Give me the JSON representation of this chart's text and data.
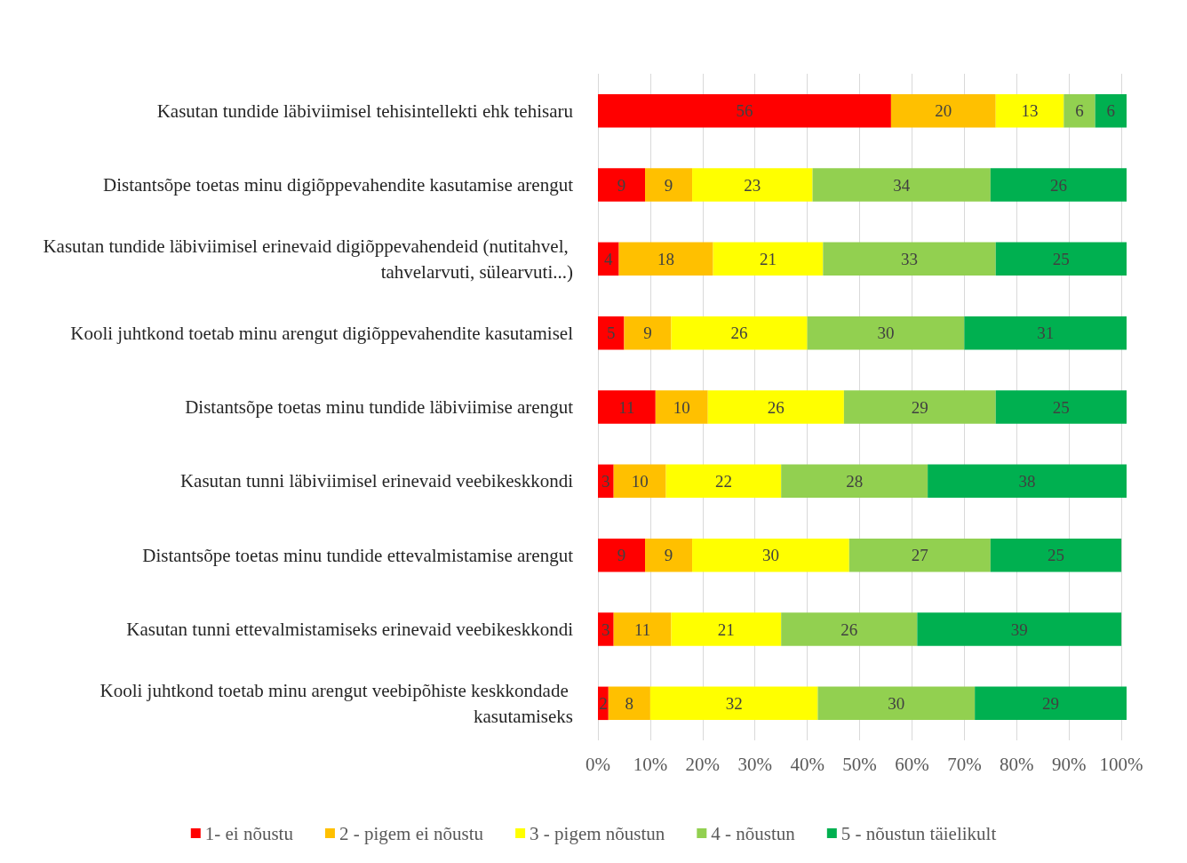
{
  "chart_data": {
    "type": "bar",
    "orientation": "horizontal",
    "stacked": true,
    "data_labels": true,
    "grid": "x",
    "legend": "bottom",
    "categories": [
      "Kasutan tundide läbiviimisel tehisintellekti ehk tehisaru",
      "Distantsõpe toetas minu digiõppevahendite kasutamise arengut",
      "Kasutan tundide läbiviimisel erinevaid digiõppevahendeid (nutitahvel, tahvelarvuti, sülearvuti...)",
      "Kooli juhtkond toetab minu arengut digiõppevahendite kasutamisel",
      "Distantsõpe toetas minu tundide läbiviimise arengut",
      "Kasutan tunni läbiviimisel erinevaid veebikeskkondi",
      "Distantsõpe toetas minu tundide ettevalmistamise arengut",
      "Kasutan tunni ettevalmistamiseks erinevaid veebikeskkondi",
      "Kooli juhtkond toetab minu arengut veebipõhiste keskkondade kasutamiseks"
    ],
    "xlim": [
      0,
      101
    ],
    "xticks": [
      {
        "value": 0,
        "label": "0%"
      },
      {
        "value": 10,
        "label": "10%"
      },
      {
        "value": 20,
        "label": "20%"
      },
      {
        "value": 30,
        "label": "30%"
      },
      {
        "value": 40,
        "label": "40%"
      },
      {
        "value": 50,
        "label": "50%"
      },
      {
        "value": 60,
        "label": "60%"
      },
      {
        "value": 70,
        "label": "70%"
      },
      {
        "value": 80,
        "label": "80%"
      },
      {
        "value": 90,
        "label": "90%"
      },
      {
        "value": 100,
        "label": "100%"
      }
    ],
    "series": [
      {
        "name": "1- ei nõustu",
        "color": "#ff0000",
        "values": [
          56,
          9,
          4,
          5,
          11,
          3,
          9,
          3,
          2
        ]
      },
      {
        "name": "2 - pigem ei nõustu",
        "color": "#ffc000",
        "values": [
          20,
          9,
          18,
          9,
          10,
          10,
          9,
          11,
          8
        ]
      },
      {
        "name": "3 - pigem nõustun",
        "color": "#ffff00",
        "values": [
          13,
          23,
          21,
          26,
          26,
          22,
          30,
          21,
          32
        ]
      },
      {
        "name": "4 - nõustun",
        "color": "#92d050",
        "values": [
          6,
          34,
          33,
          30,
          29,
          28,
          27,
          26,
          30
        ]
      },
      {
        "name": "5 - nõustun täielikult",
        "color": "#00b050",
        "values": [
          6,
          26,
          25,
          31,
          25,
          38,
          25,
          39,
          29
        ]
      }
    ]
  }
}
